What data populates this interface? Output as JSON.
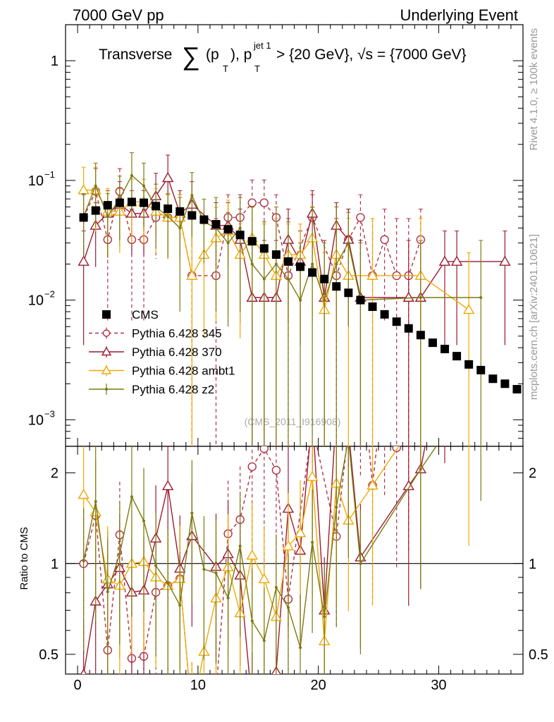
{
  "header": {
    "left": "7000 GeV pp",
    "right": "Underlying Event"
  },
  "side_labels": {
    "rivet": "Rivet 4.1.0, ≥ 100k events",
    "mcplots": "mcplots.cern.ch [arXiv:2401.10621]"
  },
  "colors": {
    "cms": "#000000",
    "p345": "#b03048",
    "p370": "#9b1b30",
    "ambt1": "#f0a800",
    "z2": "#7a7a10"
  },
  "chart_data": {
    "type": "line",
    "title": {
      "main": "Transverse",
      "sum": "∑",
      "p_open": "(p",
      "sub_T": "T",
      "p_close": "), p",
      "sup_jet": "jet 1",
      "cond": " > {20 GeV}, √s = {7000 GeV}"
    },
    "watermark": "(CMS_2011_I916908)",
    "xlabel": "",
    "ylabel_ratio": "Ratio to CMS",
    "xlim": [
      -1,
      37
    ],
    "ylim": [
      0.0006,
      2.0
    ],
    "ratio_ylim": [
      0.43,
      2.45
    ],
    "x_ticks": [
      "0",
      "10",
      "20",
      "30"
    ],
    "y_ticks": [
      {
        "value": 1,
        "label": "1"
      },
      {
        "value": 0.1,
        "label": "10",
        "exp": "−1"
      },
      {
        "value": 0.01,
        "label": "10",
        "exp": "−2"
      },
      {
        "value": 0.001,
        "label": "10",
        "exp": "−3"
      }
    ],
    "ratio_ticks": [
      {
        "value": 2,
        "label": "2"
      },
      {
        "value": 1,
        "label": "1"
      },
      {
        "value": 0.5,
        "label": "0.5"
      }
    ],
    "cms": {
      "name": "CMS",
      "x": [
        0.5,
        1.5,
        2.5,
        3.5,
        4.5,
        5.5,
        6.5,
        7.5,
        8.5,
        9.5,
        10.5,
        11.5,
        12.5,
        13.5,
        14.5,
        15.5,
        16.5,
        17.5,
        18.5,
        19.5,
        20.5,
        21.5,
        22.5,
        23.5,
        24.5,
        25.5,
        26.5,
        27.5,
        28.5,
        29.5,
        30.5,
        31.5,
        32.5,
        33.5,
        34.5,
        35.5,
        36.5
      ],
      "y": [
        0.049,
        0.056,
        0.062,
        0.065,
        0.066,
        0.065,
        0.061,
        0.058,
        0.055,
        0.051,
        0.047,
        0.043,
        0.039,
        0.035,
        0.031,
        0.027,
        0.024,
        0.021,
        0.019,
        0.017,
        0.015,
        0.013,
        0.0115,
        0.01,
        0.0088,
        0.0076,
        0.0066,
        0.0058,
        0.0051,
        0.0044,
        0.0039,
        0.0034,
        0.0029,
        0.0026,
        0.0022,
        0.002,
        0.0018
      ]
    },
    "series": [
      {
        "name": "Pythia 6.428 345",
        "key": "p345",
        "dashed": true,
        "marker": "circle",
        "x": [
          0.5,
          1.5,
          2.5,
          3.5,
          4.5,
          5.5,
          6.5,
          7.5,
          8.5,
          9.5,
          11.5,
          12.5,
          13.5,
          14.5,
          15.5,
          16.5,
          17.5,
          19.5,
          21.5,
          22.5,
          23.5,
          24.5,
          25.5,
          26.5,
          27.5,
          28.5
        ],
        "y": [
          0.049,
          0.081,
          0.032,
          0.081,
          0.032,
          0.032,
          0.049,
          0.049,
          0.049,
          0.016,
          0.016,
          0.049,
          0.049,
          0.065,
          0.065,
          0.049,
          0.016,
          0.049,
          0.016,
          0.032,
          0.049,
          0.016,
          0.032,
          0.016,
          0.016,
          0.032
        ]
      },
      {
        "name": "Pythia 6.428 370",
        "key": "p370",
        "dashed": false,
        "marker": "triangle",
        "x": [
          0.5,
          1.5,
          2.5,
          3.5,
          4.5,
          5.5,
          6.5,
          7.5,
          8.5,
          9.5,
          11.5,
          12.5,
          13.5,
          14.5,
          15.5,
          16.5,
          17.5,
          18.5,
          19.5,
          20.5,
          21.5,
          22.5,
          23.5,
          27.5,
          28.5,
          30.5,
          31.5,
          35.5
        ],
        "y": [
          0.021,
          0.042,
          0.053,
          0.063,
          0.053,
          0.053,
          0.074,
          0.105,
          0.053,
          0.063,
          0.042,
          0.042,
          0.032,
          0.0105,
          0.0105,
          0.0105,
          0.032,
          0.021,
          0.053,
          0.0105,
          0.042,
          0.032,
          0.0105,
          0.0105,
          0.0105,
          0.021,
          0.021,
          0.021
        ]
      },
      {
        "name": "Pythia 6.428 ambt1",
        "key": "ambt1",
        "dashed": false,
        "marker": "triangle",
        "x": [
          0.5,
          1.5,
          2.5,
          3.5,
          4.5,
          5.5,
          6.5,
          7.5,
          8.5,
          9.5,
          10.5,
          11.5,
          12.5,
          13.5,
          14.5,
          15.5,
          16.5,
          17.5,
          18.5,
          19.5,
          20.5,
          21.5,
          22.5,
          24.5,
          28.5,
          32.5
        ],
        "y": [
          0.083,
          0.083,
          0.055,
          0.055,
          0.066,
          0.066,
          0.055,
          0.049,
          0.049,
          0.016,
          0.024,
          0.033,
          0.038,
          0.024,
          0.033,
          0.024,
          0.016,
          0.024,
          0.024,
          0.033,
          0.0083,
          0.024,
          0.016,
          0.016,
          0.016,
          0.0083
        ]
      },
      {
        "name": "Pythia 6.428 z2",
        "key": "z2",
        "dashed": false,
        "marker": "dot",
        "x": [
          0.5,
          1.5,
          2.5,
          3.5,
          4.5,
          5.5,
          6.5,
          7.5,
          8.5,
          9.5,
          10.5,
          11.5,
          12.5,
          13.5,
          14.5,
          15.5,
          16.5,
          17.5,
          18.5,
          19.5,
          20.5,
          21.5,
          22.5,
          23.5,
          28.5,
          33.5
        ],
        "y": [
          0.05,
          0.09,
          0.05,
          0.07,
          0.11,
          0.09,
          0.06,
          0.05,
          0.04,
          0.075,
          0.045,
          0.04,
          0.03,
          0.04,
          0.02,
          0.015,
          0.02,
          0.015,
          0.01,
          0.02,
          0.01,
          0.02,
          0.03,
          0.01,
          0.0105,
          0.0105
        ]
      }
    ],
    "legend_position": "lower-left"
  }
}
